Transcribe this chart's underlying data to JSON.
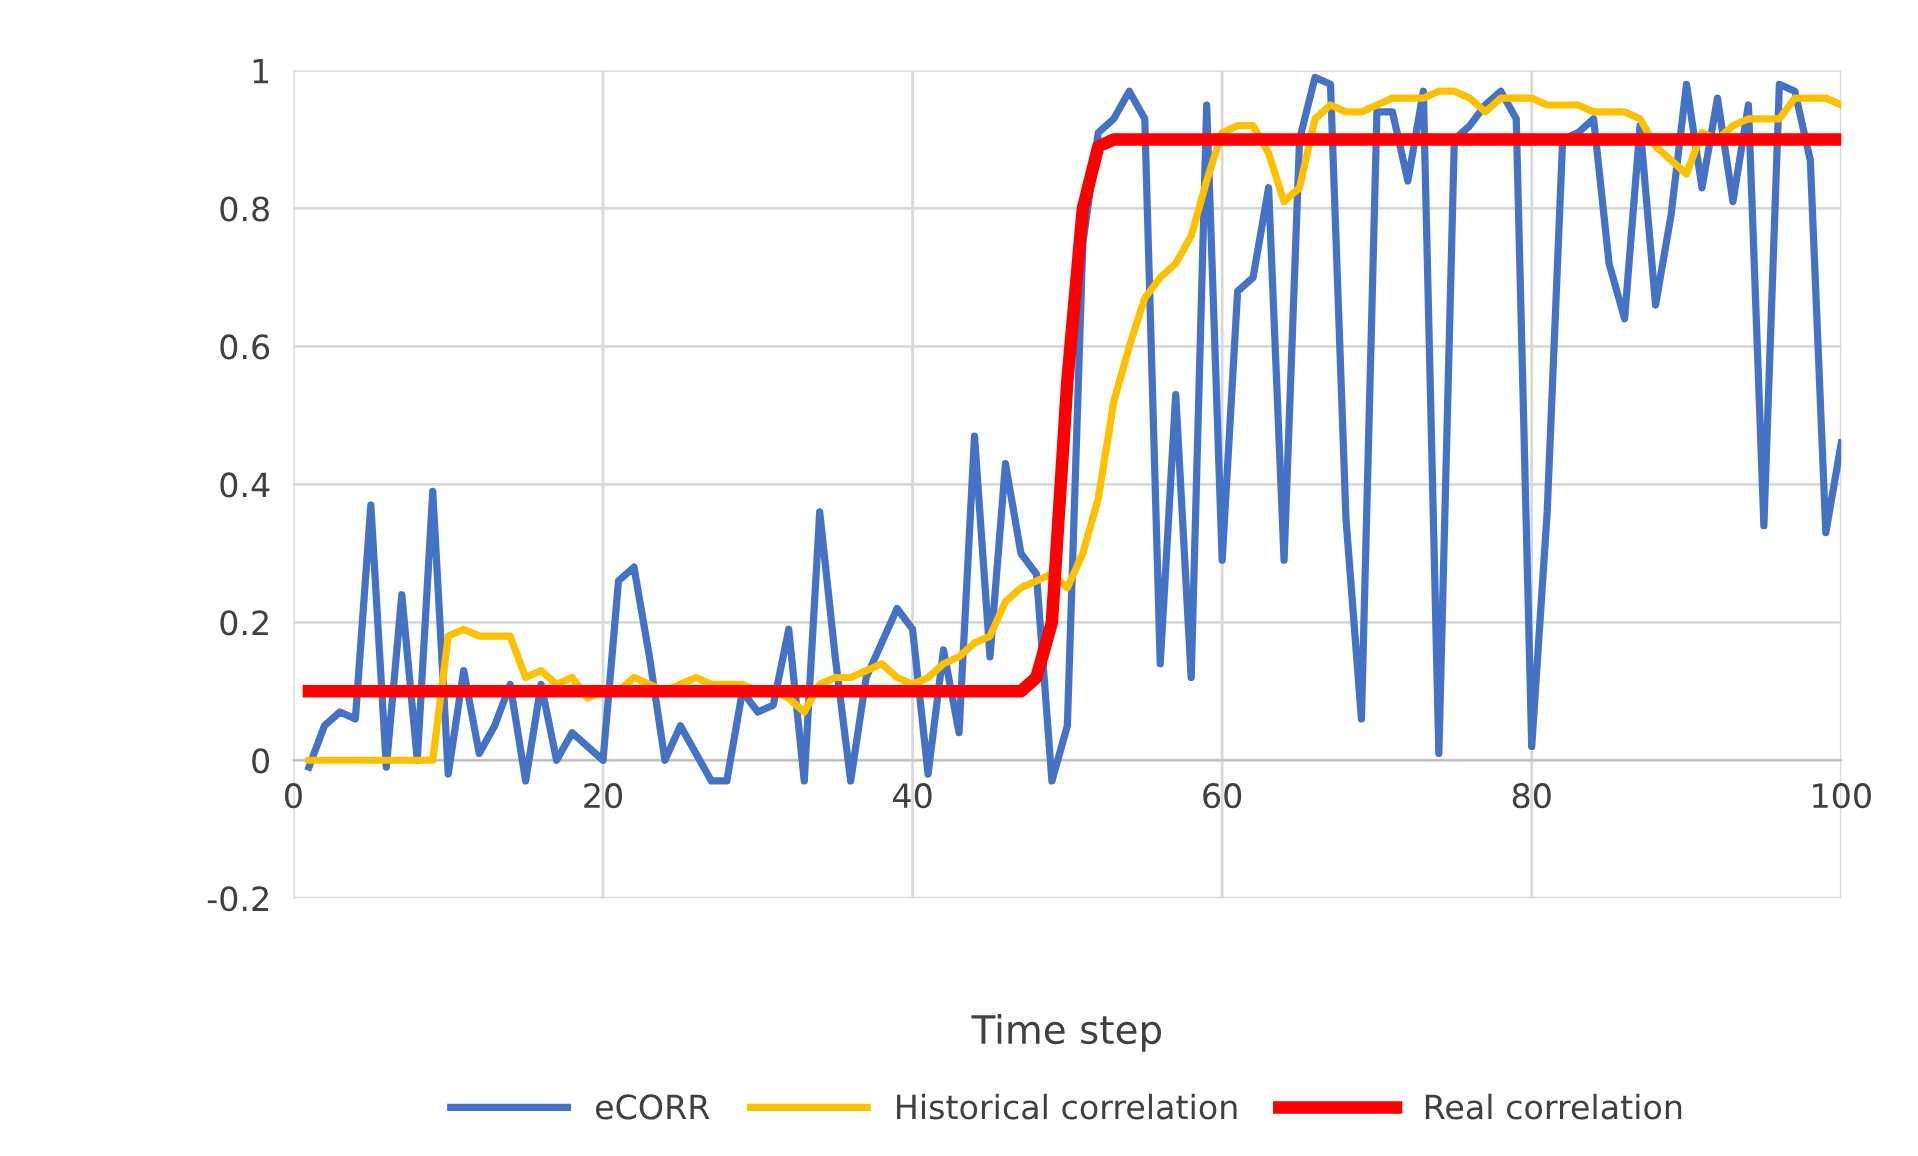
{
  "chart_data": {
    "type": "line",
    "xlabel": "Time step",
    "x": [
      1,
      2,
      3,
      4,
      5,
      6,
      7,
      8,
      9,
      10,
      11,
      12,
      13,
      14,
      15,
      16,
      17,
      18,
      19,
      20,
      21,
      22,
      23,
      24,
      25,
      26,
      27,
      28,
      29,
      30,
      31,
      32,
      33,
      34,
      35,
      36,
      37,
      38,
      39,
      40,
      41,
      42,
      43,
      44,
      45,
      46,
      47,
      48,
      49,
      50,
      51,
      52,
      53,
      54,
      55,
      56,
      57,
      58,
      59,
      60,
      61,
      62,
      63,
      64,
      65,
      66,
      67,
      68,
      69,
      70,
      71,
      72,
      73,
      74,
      75,
      76,
      77,
      78,
      79,
      80,
      81,
      82,
      83,
      84,
      85,
      86,
      87,
      88,
      89,
      90,
      91,
      92,
      93,
      94,
      95,
      96,
      97,
      98,
      99,
      100
    ],
    "series": [
      {
        "name": "eCORR",
        "color": "#4472c4",
        "values": [
          -0.01,
          0.05,
          0.07,
          0.06,
          0.37,
          -0.01,
          0.24,
          0.0,
          0.39,
          -0.02,
          0.13,
          0.01,
          0.05,
          0.11,
          -0.03,
          0.11,
          0.0,
          0.04,
          0.02,
          0.0,
          0.26,
          0.28,
          0.15,
          0.0,
          0.05,
          0.01,
          -0.03,
          -0.03,
          0.1,
          0.07,
          0.08,
          0.19,
          -0.03,
          0.36,
          0.15,
          -0.03,
          0.12,
          0.17,
          0.22,
          0.19,
          -0.02,
          0.16,
          0.04,
          0.47,
          0.15,
          0.43,
          0.3,
          0.27,
          -0.03,
          0.05,
          0.75,
          0.91,
          0.93,
          0.97,
          0.93,
          0.14,
          0.53,
          0.12,
          0.95,
          0.29,
          0.68,
          0.7,
          0.83,
          0.29,
          0.9,
          0.99,
          0.98,
          0.35,
          0.06,
          0.94,
          0.94,
          0.84,
          0.97,
          0.01,
          0.9,
          0.92,
          0.95,
          0.97,
          0.93,
          0.02,
          0.36,
          0.9,
          0.91,
          0.93,
          0.72,
          0.64,
          0.92,
          0.66,
          0.79,
          0.98,
          0.83,
          0.96,
          0.81,
          0.95,
          0.34,
          0.98,
          0.97,
          0.87,
          0.33,
          0.46
        ]
      },
      {
        "name": "Historical correlation",
        "color": "#ffc000",
        "values": [
          0,
          0,
          0,
          0,
          0,
          0,
          0,
          0,
          0,
          0.18,
          0.19,
          0.18,
          0.18,
          0.18,
          0.12,
          0.13,
          0.11,
          0.12,
          0.09,
          0.1,
          0.1,
          0.12,
          0.11,
          0.1,
          0.11,
          0.12,
          0.11,
          0.11,
          0.11,
          0.1,
          0.1,
          0.09,
          0.07,
          0.11,
          0.12,
          0.12,
          0.13,
          0.14,
          0.12,
          0.11,
          0.12,
          0.14,
          0.15,
          0.17,
          0.18,
          0.23,
          0.25,
          0.26,
          0.27,
          0.25,
          0.3,
          0.38,
          0.52,
          0.6,
          0.67,
          0.7,
          0.72,
          0.76,
          0.84,
          0.91,
          0.92,
          0.92,
          0.88,
          0.81,
          0.83,
          0.93,
          0.95,
          0.94,
          0.94,
          0.95,
          0.96,
          0.96,
          0.96,
          0.97,
          0.97,
          0.96,
          0.94,
          0.96,
          0.96,
          0.96,
          0.95,
          0.95,
          0.95,
          0.94,
          0.94,
          0.94,
          0.93,
          0.89,
          0.87,
          0.85,
          0.91,
          0.9,
          0.92,
          0.93,
          0.93,
          0.93,
          0.96,
          0.96,
          0.96,
          0.95
        ]
      },
      {
        "name": "Real correlation",
        "color": "#ff0000",
        "values": [
          0.1,
          0.1,
          0.1,
          0.1,
          0.1,
          0.1,
          0.1,
          0.1,
          0.1,
          0.1,
          0.1,
          0.1,
          0.1,
          0.1,
          0.1,
          0.1,
          0.1,
          0.1,
          0.1,
          0.1,
          0.1,
          0.1,
          0.1,
          0.1,
          0.1,
          0.1,
          0.1,
          0.1,
          0.1,
          0.1,
          0.1,
          0.1,
          0.1,
          0.1,
          0.1,
          0.1,
          0.1,
          0.1,
          0.1,
          0.1,
          0.1,
          0.1,
          0.1,
          0.1,
          0.1,
          0.1,
          0.1,
          0.12,
          0.2,
          0.55,
          0.8,
          0.89,
          0.9,
          0.9,
          0.9,
          0.9,
          0.9,
          0.9,
          0.9,
          0.9,
          0.9,
          0.9,
          0.9,
          0.9,
          0.9,
          0.9,
          0.9,
          0.9,
          0.9,
          0.9,
          0.9,
          0.9,
          0.9,
          0.9,
          0.9,
          0.9,
          0.9,
          0.9,
          0.9,
          0.9,
          0.9,
          0.9,
          0.9,
          0.9,
          0.9,
          0.9,
          0.9,
          0.9,
          0.9,
          0.9,
          0.9,
          0.9,
          0.9,
          0.9,
          0.9,
          0.9,
          0.9,
          0.9,
          0.9,
          0.9
        ]
      }
    ],
    "xlim": [
      0,
      100
    ],
    "xticks": [
      0,
      20,
      40,
      60,
      80,
      100
    ],
    "ylim": [
      -0.2,
      1
    ],
    "yticks": [
      -0.2,
      0,
      0.2,
      0.4,
      0.6,
      0.8,
      1
    ],
    "grid": true,
    "legend": "bottom",
    "marker": "none",
    "line_style": "solid"
  }
}
